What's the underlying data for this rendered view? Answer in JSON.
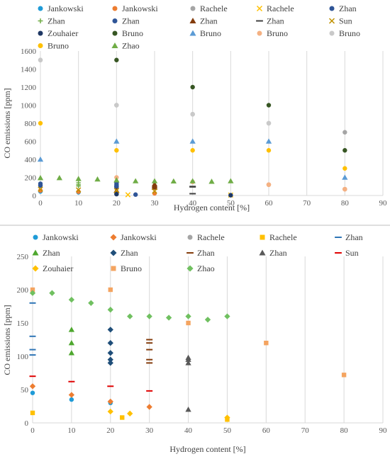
{
  "chart_data": [
    {
      "type": "scatter",
      "xlabel": "Hydrogen content [%]",
      "ylabel": "CO emissions [ppm]",
      "xlim": [
        0,
        90
      ],
      "ylim": [
        0,
        1600
      ],
      "xticks": [
        0,
        10,
        20,
        30,
        40,
        50,
        60,
        70,
        80,
        90
      ],
      "yticks": [
        0,
        200,
        400,
        600,
        800,
        1000,
        1200,
        1400,
        1600
      ],
      "grid": "vertical",
      "legend_position": "top",
      "series": [
        {
          "name": "Jankowski",
          "marker": "circle",
          "color": "#1f9bd7",
          "points": [
            [
              0,
              45
            ],
            [
              10,
              35
            ],
            [
              20,
              30
            ]
          ]
        },
        {
          "name": "Jankowski",
          "marker": "circle",
          "color": "#ed7d31",
          "points": [
            [
              0,
              55
            ],
            [
              10,
              42
            ],
            [
              20,
              32
            ],
            [
              30,
              24
            ],
            [
              60,
              120
            ],
            [
              80,
              70
            ]
          ]
        },
        {
          "name": "Rachele",
          "marker": "circle",
          "color": "#a5a5a5",
          "points": [
            [
              0,
              1500
            ],
            [
              20,
              1000
            ],
            [
              40,
              900
            ],
            [
              60,
              800
            ],
            [
              80,
              700
            ]
          ]
        },
        {
          "name": "Rachele",
          "marker": "x",
          "color": "#ffc000",
          "points": [
            [
              23,
              8
            ],
            [
              50,
              5
            ]
          ]
        },
        {
          "name": "Zhan",
          "marker": "circle",
          "color": "#2f5597",
          "points": [
            [
              0,
              130
            ],
            [
              0,
              110
            ],
            [
              20,
              100
            ],
            [
              20,
              90
            ],
            [
              20,
              120
            ]
          ]
        },
        {
          "name": "Zhan",
          "marker": "plus",
          "color": "#70ad47",
          "points": [
            [
              10,
              140
            ],
            [
              10,
              120
            ],
            [
              10,
              105
            ]
          ]
        },
        {
          "name": "Zhan",
          "marker": "circle",
          "color": "#2f5597",
          "points": [
            [
              20,
              140
            ],
            [
              20,
              105
            ],
            [
              20,
              95
            ],
            [
              25,
              10
            ]
          ]
        },
        {
          "name": "Zhan",
          "marker": "triangle",
          "color": "#843c0c",
          "points": [
            [
              20,
              55
            ],
            [
              30,
              125
            ],
            [
              30,
              110
            ],
            [
              30,
              95
            ],
            [
              30,
              90
            ]
          ]
        },
        {
          "name": "Zhan",
          "marker": "dash",
          "color": "#404040",
          "points": [
            [
              40,
              100
            ],
            [
              40,
              95
            ],
            [
              40,
              20
            ]
          ]
        },
        {
          "name": "Sun",
          "marker": "x",
          "color": "#bf9000",
          "points": [
            [
              0,
              70
            ],
            [
              10,
              62
            ],
            [
              20,
              55
            ],
            [
              30,
              48
            ]
          ]
        },
        {
          "name": "Zouhaier",
          "marker": "circle",
          "color": "#1f3864",
          "points": [
            [
              20,
              15
            ],
            [
              50,
              3
            ]
          ]
        },
        {
          "name": "Bruno",
          "marker": "circle",
          "color": "#375623",
          "points": [
            [
              20,
              1500
            ],
            [
              40,
              1200
            ],
            [
              60,
              1000
            ],
            [
              80,
              500
            ]
          ]
        },
        {
          "name": "Bruno",
          "marker": "triangle",
          "color": "#5b9bd5",
          "points": [
            [
              0,
              400
            ],
            [
              20,
              600
            ],
            [
              40,
              600
            ],
            [
              60,
              600
            ],
            [
              80,
              200
            ]
          ]
        },
        {
          "name": "Bruno",
          "marker": "circle",
          "color": "#f4b183",
          "points": [
            [
              20,
              200
            ],
            [
              40,
              150
            ],
            [
              60,
              120
            ],
            [
              80,
              70
            ]
          ]
        },
        {
          "name": "Bruno",
          "marker": "circle",
          "color": "#c9c9c9",
          "points": [
            [
              0,
              1500
            ],
            [
              20,
              1000
            ],
            [
              40,
              900
            ],
            [
              60,
              800
            ]
          ]
        },
        {
          "name": "Bruno",
          "marker": "circle",
          "color": "#ffc000",
          "points": [
            [
              0,
              800
            ],
            [
              20,
              500
            ],
            [
              40,
              500
            ],
            [
              60,
              500
            ],
            [
              80,
              300
            ]
          ]
        },
        {
          "name": "Zhao",
          "marker": "triangle",
          "color": "#70ad47",
          "points": [
            [
              0,
              195
            ],
            [
              5,
              195
            ],
            [
              10,
              185
            ],
            [
              15,
              180
            ],
            [
              20,
              170
            ],
            [
              25,
              160
            ],
            [
              30,
              160
            ],
            [
              35,
              158
            ],
            [
              40,
              160
            ],
            [
              45,
              155
            ],
            [
              50,
              160
            ]
          ]
        }
      ]
    },
    {
      "type": "scatter",
      "xlabel": "Hydrogen content [%]",
      "ylabel": "CO emissions [ppm]",
      "xlim": [
        0,
        90
      ],
      "ylim": [
        0,
        250
      ],
      "xticks": [
        0,
        10,
        20,
        30,
        40,
        50,
        60,
        70,
        80,
        90
      ],
      "yticks": [
        0,
        50,
        100,
        150,
        200,
        250
      ],
      "grid": "vertical",
      "legend_position": "top",
      "series": [
        {
          "name": "Jankowski",
          "marker": "circle",
          "color": "#1f9bd7",
          "points": [
            [
              0,
              45
            ],
            [
              10,
              35
            ],
            [
              20,
              30
            ]
          ]
        },
        {
          "name": "Jankowski",
          "marker": "diamond",
          "color": "#ed7d31",
          "points": [
            [
              0,
              55
            ],
            [
              10,
              42
            ],
            [
              20,
              32
            ],
            [
              30,
              24
            ]
          ]
        },
        {
          "name": "Rachele",
          "marker": "circle",
          "color": "#a5a5a5",
          "points": []
        },
        {
          "name": "Rachele",
          "marker": "square",
          "color": "#ffc000",
          "points": [
            [
              0,
              15
            ],
            [
              23,
              8
            ],
            [
              50,
              5
            ]
          ]
        },
        {
          "name": "Zhan",
          "marker": "dash",
          "color": "#2e75b6",
          "points": [
            [
              0,
              180
            ],
            [
              0,
              130
            ],
            [
              0,
              110
            ],
            [
              0,
              102
            ]
          ]
        },
        {
          "name": "Zhan",
          "marker": "triangle",
          "color": "#4ea72e",
          "points": [
            [
              10,
              140
            ],
            [
              10,
              120
            ],
            [
              10,
              105
            ]
          ]
        },
        {
          "name": "Zhan",
          "marker": "diamond",
          "color": "#1f4e79",
          "points": [
            [
              20,
              140
            ],
            [
              20,
              120
            ],
            [
              20,
              105
            ],
            [
              20,
              95
            ],
            [
              20,
              90
            ]
          ]
        },
        {
          "name": "Zhan",
          "marker": "dash",
          "color": "#843c0c",
          "points": [
            [
              30,
              125
            ],
            [
              30,
              120
            ],
            [
              30,
              110
            ],
            [
              30,
              95
            ],
            [
              30,
              90
            ]
          ]
        },
        {
          "name": "Zhan",
          "marker": "triangle",
          "color": "#595959",
          "points": [
            [
              40,
              98
            ],
            [
              40,
              95
            ],
            [
              40,
              90
            ],
            [
              40,
              20
            ]
          ]
        },
        {
          "name": "Sun",
          "marker": "dash",
          "color": "#e00000",
          "points": [
            [
              0,
              70
            ],
            [
              10,
              62
            ],
            [
              20,
              55
            ],
            [
              30,
              48
            ]
          ]
        },
        {
          "name": "Zouhaier",
          "marker": "diamond",
          "color": "#ffc000",
          "points": [
            [
              20,
              17
            ],
            [
              25,
              14
            ],
            [
              50,
              8
            ]
          ]
        },
        {
          "name": "Bruno",
          "marker": "square",
          "color": "#f4a460",
          "points": [
            [
              0,
              200
            ],
            [
              20,
              200
            ],
            [
              40,
              150
            ],
            [
              60,
              120
            ],
            [
              80,
              72
            ]
          ]
        },
        {
          "name": "Zhao",
          "marker": "diamond",
          "color": "#70c060",
          "points": [
            [
              0,
              195
            ],
            [
              5,
              195
            ],
            [
              10,
              185
            ],
            [
              15,
              180
            ],
            [
              20,
              170
            ],
            [
              25,
              160
            ],
            [
              30,
              160
            ],
            [
              35,
              158
            ],
            [
              40,
              160
            ],
            [
              45,
              155
            ],
            [
              50,
              160
            ]
          ]
        }
      ]
    }
  ]
}
